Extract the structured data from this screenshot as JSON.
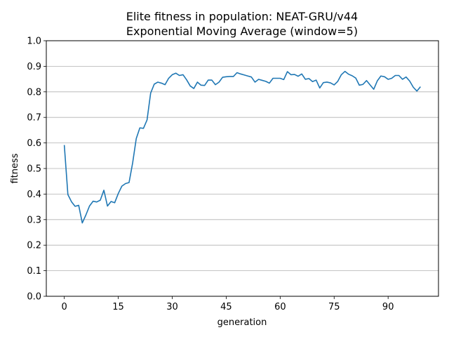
{
  "chart_data": {
    "type": "line",
    "title": "Elite fitness in population: NEAT-GRU/v44",
    "subtitle": "Exponential Moving Average (window=5)",
    "xlabel": "generation",
    "ylabel": "fitness",
    "xlim": [
      -5,
      104
    ],
    "ylim": [
      0,
      1.0
    ],
    "xticks": [
      0,
      15,
      30,
      45,
      60,
      75,
      90
    ],
    "yticks": [
      0.0,
      0.1,
      0.2,
      0.3,
      0.4,
      0.5,
      0.6,
      0.7,
      0.8,
      0.9,
      1.0
    ],
    "ytick_labels": [
      "0.0",
      "0.1",
      "0.2",
      "0.3",
      "0.4",
      "0.5",
      "0.6",
      "0.7",
      "0.8",
      "0.9",
      "1.0"
    ],
    "grid": "horizontal",
    "line_color": "#1f77b4",
    "series": [
      {
        "x": [
          0,
          1,
          2,
          3,
          4,
          5,
          6,
          7,
          8,
          9,
          10,
          11,
          12,
          13,
          14,
          15,
          16,
          17,
          18,
          19,
          20,
          21,
          22,
          23,
          24,
          25,
          26,
          27,
          28,
          29,
          30,
          31,
          32,
          33,
          34,
          35,
          36,
          37,
          38,
          39,
          40,
          41,
          42,
          43,
          44,
          45,
          46,
          47,
          48,
          49,
          50,
          51,
          52,
          53,
          54,
          55,
          56,
          57,
          58,
          59,
          60,
          61,
          62,
          63,
          64,
          65,
          66,
          67,
          68,
          69,
          70,
          71,
          72,
          73,
          74,
          75,
          76,
          77,
          78,
          79,
          80,
          81,
          82,
          83,
          84,
          85,
          86,
          87,
          88,
          89,
          90,
          91,
          92,
          93,
          94,
          95,
          96,
          97,
          98,
          99
        ],
        "y": [
          0.592,
          0.398,
          0.37,
          0.352,
          0.356,
          0.287,
          0.318,
          0.353,
          0.372,
          0.369,
          0.376,
          0.415,
          0.353,
          0.371,
          0.366,
          0.402,
          0.431,
          0.441,
          0.445,
          0.522,
          0.617,
          0.659,
          0.657,
          0.69,
          0.795,
          0.83,
          0.838,
          0.834,
          0.828,
          0.853,
          0.867,
          0.873,
          0.864,
          0.867,
          0.847,
          0.823,
          0.813,
          0.838,
          0.826,
          0.825,
          0.846,
          0.846,
          0.828,
          0.838,
          0.857,
          0.859,
          0.86,
          0.86,
          0.875,
          0.87,
          0.866,
          0.862,
          0.858,
          0.838,
          0.849,
          0.845,
          0.841,
          0.834,
          0.853,
          0.853,
          0.853,
          0.848,
          0.879,
          0.867,
          0.868,
          0.861,
          0.87,
          0.849,
          0.852,
          0.84,
          0.846,
          0.815,
          0.836,
          0.838,
          0.835,
          0.827,
          0.841,
          0.867,
          0.88,
          0.869,
          0.863,
          0.854,
          0.826,
          0.829,
          0.844,
          0.827,
          0.81,
          0.843,
          0.862,
          0.859,
          0.849,
          0.853,
          0.864,
          0.864,
          0.849,
          0.858,
          0.842,
          0.818,
          0.803,
          0.82
        ]
      }
    ]
  }
}
